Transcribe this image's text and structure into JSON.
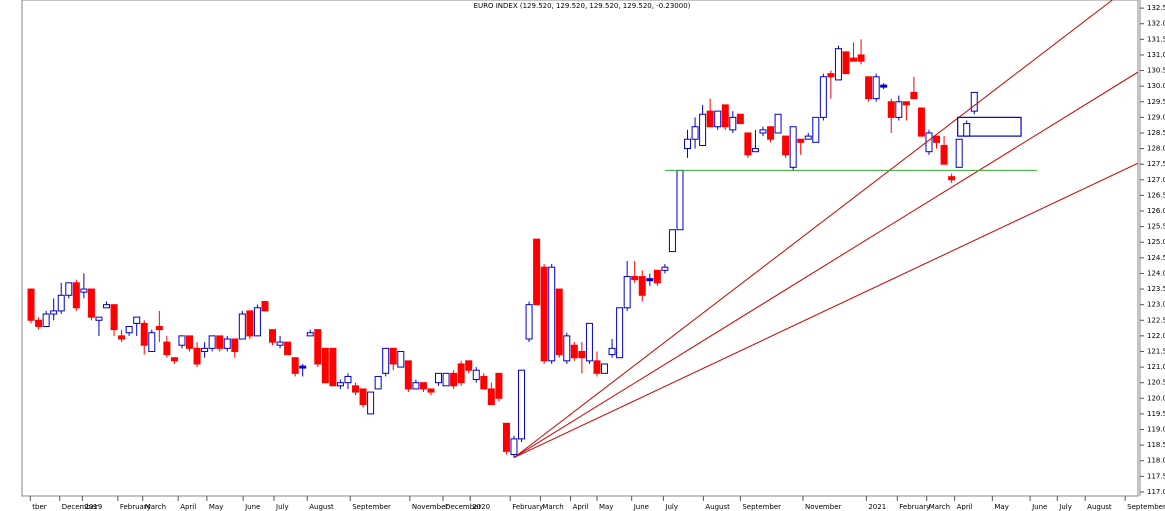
{
  "chart_data": {
    "type": "candlestick",
    "title": "EURO INDEX (129.520, 129.520, 129.520, 129.520, -0.23000)",
    "up_color": "#0000cc",
    "down_color": "#ff0000",
    "open": [
      123.5,
      122.5,
      122.3,
      122.7,
      122.8,
      123.3,
      123.7,
      123.4,
      123.5,
      122.5,
      122.9,
      123.0,
      122.0,
      122.1,
      122.4,
      122.4,
      121.5,
      122.3,
      121.8,
      121.3,
      121.7,
      122.0,
      121.6,
      121.5,
      121.6,
      122.0,
      121.6,
      121.9,
      121.9,
      122.8,
      122.0,
      123.1,
      122.2,
      121.7,
      121.8,
      121.3,
      121.0,
      122.0,
      122.2,
      121.6,
      121.6,
      120.4,
      120.5,
      120.4,
      120.3,
      119.5,
      120.3,
      120.8,
      121.6,
      121.0,
      121.2,
      120.3,
      120.5,
      120.3,
      120.5,
      120.4,
      120.8,
      121.1,
      121.2,
      120.6,
      120.7,
      120.3,
      120.8,
      119.2,
      118.2,
      118.7,
      121.9,
      125.1,
      124.2,
      121.2,
      123.5,
      121.2,
      121.7,
      121.5,
      121.2,
      121.2,
      120.8,
      121.4,
      121.3,
      122.9,
      123.9,
      123.9,
      123.8,
      124.1,
      124.1,
      124.7,
      125.4,
      128.0,
      128.3,
      128.1,
      129.2,
      128.7,
      129.4,
      128.6,
      129.1,
      128.5,
      127.9,
      128.5,
      128.7,
      128.5,
      128.4,
      127.4,
      128.3,
      128.3,
      128.2,
      129.0,
      130.4,
      130.2,
      131.1,
      130.9,
      131.0,
      130.3,
      129.6,
      130.0,
      129.5,
      129.0,
      129.5,
      129.8,
      129.3,
      127.9,
      128.4,
      128.1,
      127.1,
      127.4,
      128.4,
      129.2
    ],
    "high": [
      123.5,
      122.6,
      122.8,
      123.2,
      123.7,
      123.7,
      123.8,
      124.0,
      123.5,
      122.6,
      123.1,
      123.0,
      122.2,
      122.3,
      122.6,
      122.5,
      122.2,
      122.8,
      122.0,
      121.3,
      122.0,
      122.0,
      121.8,
      121.8,
      122.0,
      122.0,
      122.0,
      121.9,
      122.8,
      122.8,
      123.0,
      123.1,
      122.2,
      122.0,
      121.8,
      121.3,
      121.1,
      122.2,
      122.2,
      121.6,
      121.6,
      120.6,
      120.8,
      120.5,
      120.3,
      120.2,
      120.7,
      121.6,
      121.6,
      121.5,
      121.2,
      120.6,
      120.5,
      120.3,
      120.8,
      120.8,
      120.9,
      121.2,
      121.2,
      121.0,
      120.8,
      120.5,
      120.8,
      119.2,
      118.8,
      120.9,
      123.1,
      125.1,
      124.3,
      124.3,
      123.5,
      122.1,
      121.8,
      121.8,
      122.4,
      121.5,
      121.1,
      121.9,
      122.9,
      124.4,
      124.4,
      124.1,
      124.0,
      124.1,
      124.3,
      125.4,
      127.3,
      128.6,
      129.0,
      129.4,
      129.6,
      129.2,
      129.4,
      129.2,
      129.1,
      128.5,
      128.6,
      128.7,
      128.7,
      129.1,
      128.4,
      128.7,
      128.3,
      128.5,
      129.0,
      130.4,
      130.5,
      131.3,
      131.1,
      131.4,
      131.5,
      130.3,
      130.4,
      130.1,
      129.6,
      129.7,
      129.5,
      130.3,
      129.3,
      128.6,
      128.4,
      128.4,
      127.2,
      128.3,
      128.9,
      129.8
    ],
    "low": [
      122.4,
      122.2,
      122.3,
      122.5,
      122.7,
      123.2,
      122.8,
      123.2,
      122.5,
      122.0,
      122.9,
      122.0,
      121.8,
      122.0,
      122.0,
      121.4,
      121.5,
      121.8,
      121.3,
      121.1,
      121.6,
      121.5,
      121.0,
      121.3,
      121.5,
      121.5,
      121.5,
      121.3,
      121.9,
      121.9,
      122.0,
      122.8,
      121.7,
      121.6,
      121.4,
      120.7,
      120.7,
      122.0,
      121.0,
      120.5,
      120.4,
      120.3,
      120.3,
      120.1,
      119.7,
      119.5,
      120.3,
      120.7,
      120.9,
      121.0,
      120.2,
      120.3,
      120.2,
      120.1,
      120.4,
      120.4,
      120.3,
      120.4,
      120.8,
      120.5,
      120.3,
      119.8,
      119.9,
      118.2,
      118.1,
      118.6,
      121.8,
      123.0,
      121.1,
      121.1,
      121.3,
      121.1,
      121.2,
      120.8,
      121.1,
      120.7,
      120.8,
      121.3,
      121.3,
      122.8,
      123.7,
      123.1,
      123.6,
      123.6,
      124.0,
      124.7,
      125.4,
      127.7,
      128.0,
      128.1,
      128.7,
      128.6,
      128.6,
      128.5,
      128.8,
      127.7,
      127.9,
      128.4,
      128.2,
      128.5,
      127.7,
      127.3,
      127.8,
      128.3,
      128.2,
      128.9,
      129.6,
      130.2,
      130.4,
      130.8,
      130.7,
      129.5,
      129.5,
      129.9,
      128.5,
      128.9,
      128.9,
      129.6,
      128.4,
      127.8,
      128.0,
      127.5,
      126.9,
      127.4,
      128.4,
      129.1
    ],
    "close": [
      122.5,
      122.3,
      122.7,
      122.8,
      123.3,
      123.7,
      122.9,
      123.5,
      122.6,
      122.6,
      123.0,
      122.2,
      121.9,
      122.3,
      122.6,
      121.7,
      122.1,
      122.2,
      121.4,
      121.2,
      122.0,
      121.6,
      121.1,
      121.6,
      122.0,
      121.6,
      121.9,
      121.5,
      122.7,
      122.0,
      122.9,
      122.8,
      121.8,
      121.8,
      121.4,
      120.8,
      121.0,
      122.1,
      121.1,
      120.5,
      120.4,
      120.5,
      120.7,
      120.2,
      119.8,
      120.2,
      120.7,
      121.6,
      121.1,
      121.5,
      120.3,
      120.5,
      120.3,
      120.2,
      120.8,
      120.8,
      120.4,
      120.5,
      120.9,
      120.9,
      120.3,
      119.8,
      120.0,
      118.3,
      118.7,
      120.9,
      123.0,
      123.0,
      121.2,
      124.2,
      121.4,
      122.0,
      121.3,
      121.3,
      122.4,
      120.8,
      121.1,
      121.6,
      122.9,
      123.9,
      123.8,
      123.3,
      123.8,
      123.7,
      124.2,
      125.4,
      127.3,
      128.3,
      128.7,
      129.1,
      128.7,
      129.2,
      128.7,
      129.0,
      128.8,
      127.8,
      128.0,
      128.6,
      128.3,
      129.1,
      127.8,
      128.7,
      128.2,
      128.4,
      129.0,
      130.3,
      130.3,
      131.2,
      130.4,
      130.8,
      130.8,
      129.6,
      130.3,
      130.0,
      129.0,
      129.5,
      129.4,
      129.6,
      128.4,
      128.5,
      128.2,
      127.5,
      127.0,
      128.3,
      128.8,
      129.8
    ],
    "xlim": [
      -1.2,
      146.7
    ],
    "xticks": [
      {
        "value": -0.1,
        "label": "tber"
      },
      {
        "value": 3.8,
        "label": "December"
      },
      {
        "value": 6.8,
        "label": "2019"
      },
      {
        "value": 11.5,
        "label": "February"
      },
      {
        "value": 14.8,
        "label": "March"
      },
      {
        "value": 19.5,
        "label": "April"
      },
      {
        "value": 23.3,
        "label": "May"
      },
      {
        "value": 28.1,
        "label": "June"
      },
      {
        "value": 32.2,
        "label": "July"
      },
      {
        "value": 36.6,
        "label": "August"
      },
      {
        "value": 42.3,
        "label": "September"
      },
      {
        "value": 50.2,
        "label": "November"
      },
      {
        "value": 54.6,
        "label": "December"
      },
      {
        "value": 58.2,
        "label": "2020"
      },
      {
        "value": 63.5,
        "label": "February"
      },
      {
        "value": 67.5,
        "label": "March"
      },
      {
        "value": 71.5,
        "label": "April"
      },
      {
        "value": 75.0,
        "label": "May"
      },
      {
        "value": 79.6,
        "label": "June"
      },
      {
        "value": 83.8,
        "label": "July"
      },
      {
        "value": 89.1,
        "label": "August"
      },
      {
        "value": 94.0,
        "label": "September"
      },
      {
        "value": 102.3,
        "label": "November"
      },
      {
        "value": 110.7,
        "label": "2021"
      },
      {
        "value": 114.8,
        "label": "February"
      },
      {
        "value": 118.7,
        "label": "March"
      },
      {
        "value": 122.4,
        "label": "April"
      },
      {
        "value": 127.4,
        "label": "May"
      },
      {
        "value": 132.4,
        "label": "June"
      },
      {
        "value": 136.0,
        "label": "July"
      },
      {
        "value": 139.7,
        "label": "August"
      },
      {
        "value": 145.0,
        "label": "September"
      }
    ],
    "ylim": [
      116.87,
      132.76
    ],
    "yticks": [
      {
        "value": 117,
        "label": "117.0"
      },
      117.5,
      {
        "value": 118,
        "label": "118.0"
      },
      118.5,
      {
        "value": 119,
        "label": "119.0"
      },
      119.5,
      {
        "value": 120,
        "label": "120.0"
      },
      120.5,
      {
        "value": 121,
        "label": "121.0"
      },
      121.5,
      {
        "value": 122,
        "label": "122.0"
      },
      122.5,
      {
        "value": 123,
        "label": "123.0"
      },
      123.5,
      {
        "value": 124,
        "label": "124.0"
      },
      124.5,
      {
        "value": 125,
        "label": "125.0"
      },
      125.5,
      {
        "value": 126,
        "label": "126.0"
      },
      126.5,
      {
        "value": 127,
        "label": "127.0"
      },
      127.5,
      {
        "value": 128,
        "label": "128.0"
      },
      128.5,
      {
        "value": 129,
        "label": "129.0"
      },
      129.5,
      {
        "value": 130,
        "label": "130.0"
      },
      130.5,
      {
        "value": 131,
        "label": "131.0"
      },
      131.5,
      {
        "value": 132,
        "label": "132.0"
      },
      132.5
    ],
    "trend_lines": [
      {
        "color": "#cc0000",
        "x": [
          64,
          143.3
        ],
        "y": [
          118.1,
          132.76
        ]
      },
      {
        "color": "#cc0000",
        "x": [
          64,
          146.7
        ],
        "y": [
          118.1,
          130.45
        ]
      },
      {
        "color": "#cc0000",
        "x": [
          64,
          146.7
        ],
        "y": [
          118.1,
          127.53
        ]
      },
      {
        "color": "#33aa33",
        "x": [
          84.0,
          133.3
        ],
        "y": [
          127.3,
          127.3
        ]
      }
    ],
    "box": {
      "color": "#0000cc",
      "x": [
        122.8,
        131.2
      ],
      "y": [
        128.4,
        129.0
      ]
    }
  }
}
